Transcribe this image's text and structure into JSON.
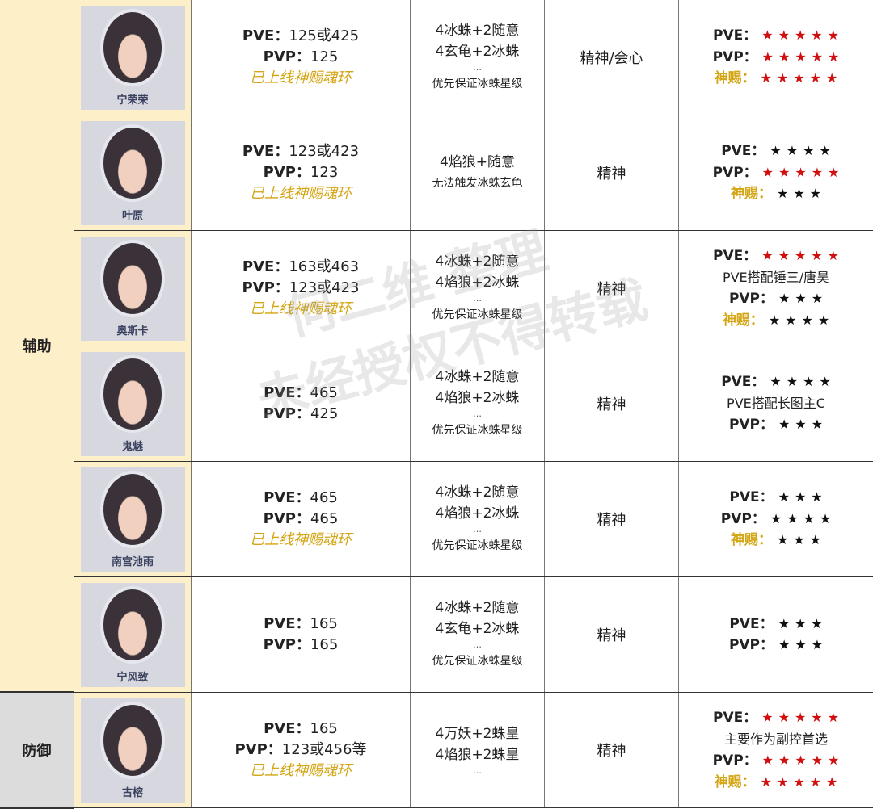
{
  "categories": [
    {
      "label": "辅助",
      "rows": 6,
      "bg": "#fdf0c9"
    },
    {
      "label": "防御",
      "rows": 1,
      "bg": "#dcdcdc"
    }
  ],
  "watermark": [
    "何二维 整理",
    "未经授权不得转载"
  ],
  "colors": {
    "gold": "#d4a514",
    "red_star": "#d01010",
    "black_star": "#111111"
  },
  "rows": [
    {
      "name": "宁荣荣",
      "stats": [
        [
          "PVE：",
          "125或425"
        ],
        [
          "PVP：",
          "125"
        ]
      ],
      "shenci": "已上线神赐魂环",
      "sets": [
        "4冰蛛+2随意",
        "4玄龟+2冰蛛",
        "…",
        "优先保证冰蛛星级"
      ],
      "attr": "精神/会心",
      "ratings": [
        {
          "label": "PVE：",
          "stars": 5,
          "color": "red"
        },
        {
          "label": "PVP：",
          "stars": 5,
          "color": "red"
        },
        {
          "label": "神赐：",
          "stars": 5,
          "color": "red",
          "gold": true
        }
      ]
    },
    {
      "name": "叶原",
      "stats": [
        [
          "PVE：",
          "123或423"
        ],
        [
          "PVP：",
          "123"
        ]
      ],
      "shenci": "已上线神赐魂环",
      "sets": [
        "4焰狼+随意",
        "无法触发冰蛛玄龟"
      ],
      "attr": "精神",
      "ratings": [
        {
          "label": "PVE：",
          "stars": 4,
          "color": "black"
        },
        {
          "label": "PVP：",
          "stars": 5,
          "color": "red"
        },
        {
          "label": "神赐：",
          "stars": 3,
          "color": "black",
          "gold": true
        }
      ]
    },
    {
      "name": "奥斯卡",
      "stats": [
        [
          "PVE：",
          "163或463"
        ],
        [
          "PVP：",
          "123或423"
        ]
      ],
      "shenci": "已上线神赐魂环",
      "sets": [
        "4冰蛛+2随意",
        "4焰狼+2冰蛛",
        "…",
        "优先保证冰蛛星级"
      ],
      "attr": "精神",
      "ratings": [
        {
          "label": "PVE：",
          "stars": 5,
          "color": "red"
        },
        {
          "note": "PVE搭配锤三/唐昊"
        },
        {
          "label": "PVP：",
          "stars": 3,
          "color": "black"
        },
        {
          "label": "神赐：",
          "stars": 4,
          "color": "black",
          "gold": true
        }
      ]
    },
    {
      "name": "鬼魅",
      "stats": [
        [
          "PVE：",
          "465"
        ],
        [
          "PVP：",
          "425"
        ]
      ],
      "shenci": null,
      "sets": [
        "4冰蛛+2随意",
        "4焰狼+2冰蛛",
        "…",
        "优先保证冰蛛星级"
      ],
      "attr": "精神",
      "ratings": [
        {
          "label": "PVE：",
          "stars": 4,
          "color": "black"
        },
        {
          "note": "PVE搭配长图主C"
        },
        {
          "label": "PVP：",
          "stars": 3,
          "color": "black"
        }
      ]
    },
    {
      "name": "南宫池雨",
      "stats": [
        [
          "PVE：",
          "465"
        ],
        [
          "PVP：",
          "465"
        ]
      ],
      "shenci": "已上线神赐魂环",
      "sets": [
        "4冰蛛+2随意",
        "4焰狼+2冰蛛",
        "…",
        "优先保证冰蛛星级"
      ],
      "attr": "精神",
      "ratings": [
        {
          "label": "PVE：",
          "stars": 3,
          "color": "black"
        },
        {
          "label": "PVP：",
          "stars": 4,
          "color": "black"
        },
        {
          "label": "神赐：",
          "stars": 3,
          "color": "black",
          "gold": true
        }
      ]
    },
    {
      "name": "宁风致",
      "stats": [
        [
          "PVE：",
          "165"
        ],
        [
          "PVP：",
          "165"
        ]
      ],
      "shenci": null,
      "sets": [
        "4冰蛛+2随意",
        "4玄龟+2冰蛛",
        "…",
        "优先保证冰蛛星级"
      ],
      "attr": "精神",
      "ratings": [
        {
          "label": "PVE：",
          "stars": 3,
          "color": "black"
        },
        {
          "label": "PVP：",
          "stars": 3,
          "color": "black"
        }
      ]
    },
    {
      "name": "古榕",
      "stats": [
        [
          "PVE：",
          "165"
        ],
        [
          "PVP：",
          "123或456等"
        ]
      ],
      "shenci": "已上线神赐魂环",
      "sets": [
        "4万妖+2蛛皇",
        "4焰狼+2蛛皇",
        "…"
      ],
      "attr": "精神",
      "ratings": [
        {
          "label": "PVE：",
          "stars": 5,
          "color": "red"
        },
        {
          "note": "主要作为副控首选"
        },
        {
          "label": "PVP：",
          "stars": 5,
          "color": "red"
        },
        {
          "label": "神赐：",
          "stars": 5,
          "color": "red",
          "gold": true
        }
      ]
    }
  ]
}
